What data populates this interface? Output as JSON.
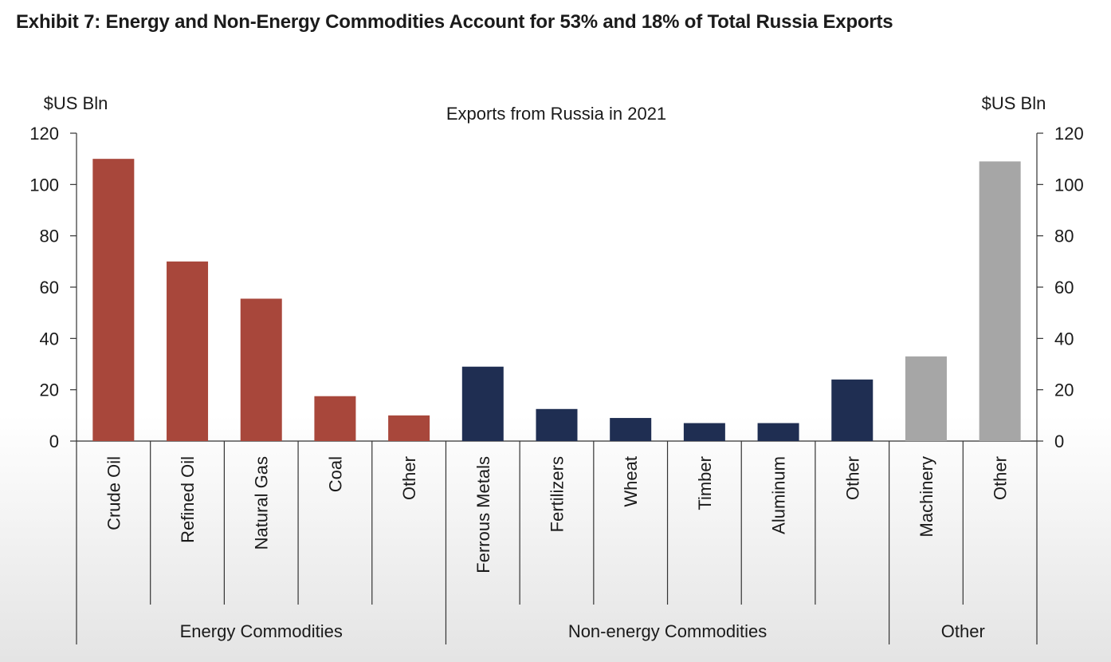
{
  "exhibit_title": "Exhibit 7: Energy and Non-Energy Commodities Account for 53% and 18% of Total Russia Exports",
  "chart_data": {
    "type": "bar",
    "title": "Exports from Russia in 2021",
    "ylabel_left": "$US Bln",
    "ylabel_right": "$US Bln",
    "ylim": [
      0,
      120
    ],
    "yticks": [
      0,
      20,
      40,
      60,
      80,
      100,
      120
    ],
    "categories": [
      "Crude Oil",
      "Refined Oil",
      "Natural Gas",
      "Coal",
      "Other",
      "Ferrous Metals",
      "Fertilizers",
      "Wheat",
      "Timber",
      "Aluminum",
      "Other",
      "Machinery",
      "Other"
    ],
    "values": [
      110,
      70,
      55.5,
      17.5,
      10,
      29,
      12.5,
      9,
      7,
      7,
      24,
      33,
      109
    ],
    "groups": [
      {
        "name": "Energy Commodities",
        "start": 0,
        "end": 4,
        "color": "#a8473b"
      },
      {
        "name": "Non-energy Commodities",
        "start": 5,
        "end": 10,
        "color": "#1f2e52"
      },
      {
        "name": "Other",
        "start": 11,
        "end": 12,
        "color": "#a6a6a6"
      }
    ],
    "grid": false,
    "legend": "none"
  }
}
